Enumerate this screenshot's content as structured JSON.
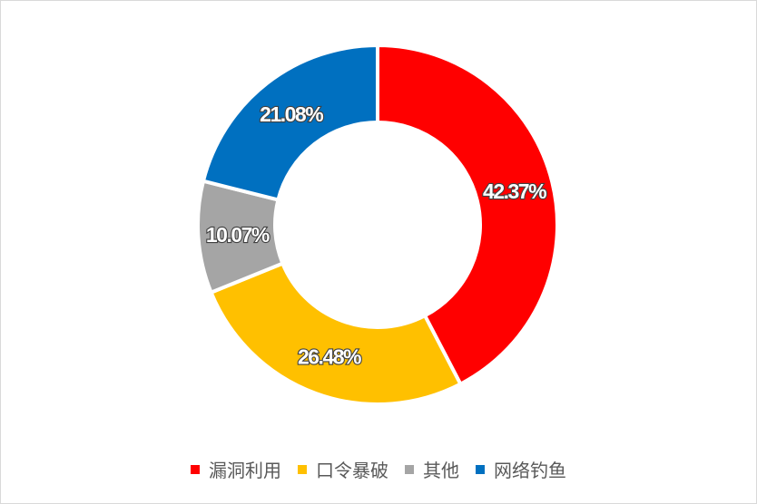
{
  "chart_data": {
    "type": "pie",
    "variant": "donut",
    "categories": [
      "漏洞利用",
      "口令暴破",
      "其他",
      "网络钓鱼"
    ],
    "values": [
      42.37,
      26.48,
      10.07,
      21.08
    ],
    "labels": [
      "42.37%",
      "26.48%",
      "10.07%",
      "21.08%"
    ],
    "colors": [
      "#ff0000",
      "#ffc000",
      "#a5a5a5",
      "#0070c0"
    ],
    "unit": "%",
    "legend_position": "bottom",
    "start": "top, clockwise"
  }
}
